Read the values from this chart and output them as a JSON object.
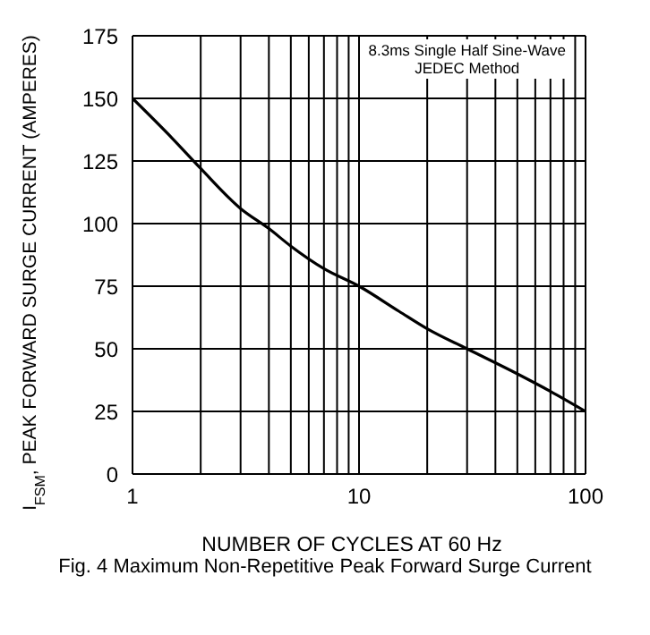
{
  "chart_data": {
    "type": "line",
    "title": "Fig. 4  Maximum Non-Repetitive Peak Forward Surge Current",
    "xlabel": "NUMBER OF CYCLES AT 60 Hz",
    "ylabel": "I$_{FSM}$, PEAK FORWARD SURGE CURRENT (AMPERES)",
    "annotations": [
      "8.3ms Single Half Sine-Wave\nJEDEC Method"
    ],
    "x": [
      1,
      1.5,
      2,
      3,
      4,
      5,
      7,
      10,
      15,
      20,
      30,
      50,
      70,
      100
    ],
    "series": [
      {
        "color": "#000000",
        "values": [
          150,
          134,
          122,
          106,
          98,
          91,
          82,
          75,
          65,
          58,
          50,
          40,
          33,
          25
        ]
      }
    ],
    "log": "x",
    "xlim": [
      1,
      100
    ],
    "xticks": [
      1,
      {
        "value": 2,
        "label": null
      },
      {
        "value": 3,
        "label": null
      },
      {
        "value": 4,
        "label": null
      },
      {
        "value": 5,
        "label": null
      },
      {
        "value": 6,
        "label": null
      },
      {
        "value": 7,
        "label": null
      },
      {
        "value": 8,
        "label": null
      },
      {
        "value": 9,
        "label": null
      },
      10,
      {
        "value": 20,
        "label": null
      },
      {
        "value": 30,
        "label": null
      },
      {
        "value": 40,
        "label": null
      },
      {
        "value": 50,
        "label": null
      },
      {
        "value": 60,
        "label": null
      },
      {
        "value": 70,
        "label": null
      },
      {
        "value": 80,
        "label": null
      },
      {
        "value": 90,
        "label": null
      },
      100
    ],
    "ylim": [
      0,
      175
    ],
    "yticks": [
      0,
      25,
      50,
      75,
      100,
      125,
      150,
      175
    ],
    "grid": true,
    "legend": false,
    "marker": "none",
    "line_style": "solid"
  }
}
